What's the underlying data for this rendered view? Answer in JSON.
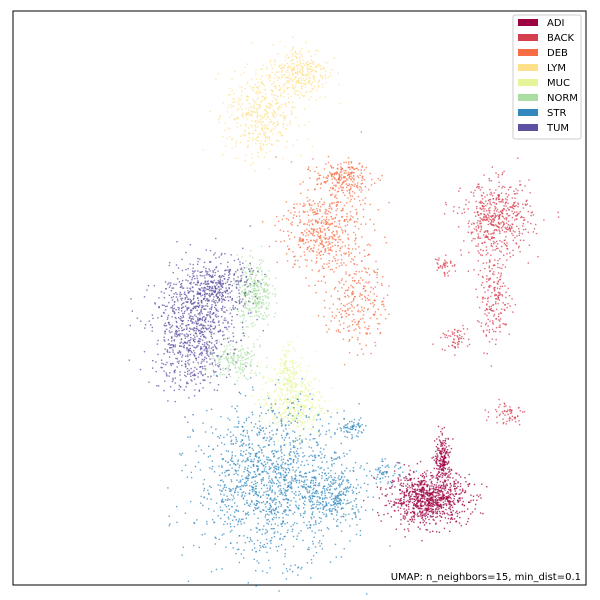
{
  "chart_data": {
    "type": "scatter",
    "title": "",
    "xlabel": "",
    "ylabel": "",
    "annotation": "UMAP: n_neighbors=15, min_dist=0.1",
    "axes_ticks": false,
    "grid": false,
    "legend_position": "top-right",
    "xlim": [
      0,
      100
    ],
    "ylim": [
      0,
      100
    ],
    "series": [
      {
        "name": "ADI",
        "color": "#9e0142",
        "clusters": [
          {
            "cx": 72.5,
            "cy": 15.0,
            "sx": 3.5,
            "sy": 2.2,
            "n": 900
          },
          {
            "cx": 75.0,
            "cy": 22.0,
            "sx": 0.7,
            "sy": 2.0,
            "n": 200
          }
        ]
      },
      {
        "name": "BACK",
        "color": "#d53e4f",
        "clusters": [
          {
            "cx": 84.5,
            "cy": 64.0,
            "sx": 3.0,
            "sy": 3.2,
            "n": 500
          },
          {
            "cx": 84.0,
            "cy": 50.0,
            "sx": 1.5,
            "sy": 4.0,
            "n": 200
          },
          {
            "cx": 77.0,
            "cy": 43.0,
            "sx": 1.2,
            "sy": 1.0,
            "n": 60
          },
          {
            "cx": 86.5,
            "cy": 30.0,
            "sx": 1.5,
            "sy": 1.0,
            "n": 60
          },
          {
            "cx": 75.0,
            "cy": 56.0,
            "sx": 0.8,
            "sy": 1.0,
            "n": 40
          }
        ]
      },
      {
        "name": "DEB",
        "color": "#f46d43",
        "clusters": [
          {
            "cx": 54.0,
            "cy": 62.0,
            "sx": 3.5,
            "sy": 4.0,
            "n": 500
          },
          {
            "cx": 57.5,
            "cy": 71.0,
            "sx": 2.5,
            "sy": 1.5,
            "n": 220
          },
          {
            "cx": 60.0,
            "cy": 50.0,
            "sx": 2.5,
            "sy": 4.5,
            "n": 260
          }
        ]
      },
      {
        "name": "LYM",
        "color": "#fee08b",
        "clusters": [
          {
            "cx": 43.0,
            "cy": 82.0,
            "sx": 3.0,
            "sy": 4.0,
            "n": 450
          },
          {
            "cx": 50.0,
            "cy": 89.5,
            "sx": 2.5,
            "sy": 2.5,
            "n": 320
          }
        ]
      },
      {
        "name": "MUC",
        "color": "#e6f598",
        "clusters": [
          {
            "cx": 48.5,
            "cy": 32.0,
            "sx": 2.8,
            "sy": 3.2,
            "n": 420
          },
          {
            "cx": 48.0,
            "cy": 38.0,
            "sx": 0.8,
            "sy": 2.0,
            "n": 90
          }
        ]
      },
      {
        "name": "NORM",
        "color": "#abdda4",
        "clusters": [
          {
            "cx": 42.0,
            "cy": 51.0,
            "sx": 1.5,
            "sy": 3.0,
            "n": 320
          },
          {
            "cx": 38.5,
            "cy": 39.0,
            "sx": 2.5,
            "sy": 1.6,
            "n": 180
          }
        ]
      },
      {
        "name": "STR",
        "color": "#3288bd",
        "clusters": [
          {
            "cx": 45.0,
            "cy": 18.0,
            "sx": 6.5,
            "sy": 6.5,
            "n": 1400
          },
          {
            "cx": 56.0,
            "cy": 15.5,
            "sx": 2.5,
            "sy": 2.5,
            "n": 250
          },
          {
            "cx": 59.0,
            "cy": 27.5,
            "sx": 1.2,
            "sy": 0.8,
            "n": 60
          },
          {
            "cx": 65.0,
            "cy": 19.5,
            "sx": 1.5,
            "sy": 1.0,
            "n": 60
          }
        ]
      },
      {
        "name": "TUM",
        "color": "#5e4fa2",
        "clusters": [
          {
            "cx": 31.0,
            "cy": 44.0,
            "sx": 3.5,
            "sy": 5.0,
            "n": 800
          },
          {
            "cx": 35.5,
            "cy": 52.0,
            "sx": 3.0,
            "sy": 2.5,
            "n": 400
          }
        ]
      }
    ]
  }
}
